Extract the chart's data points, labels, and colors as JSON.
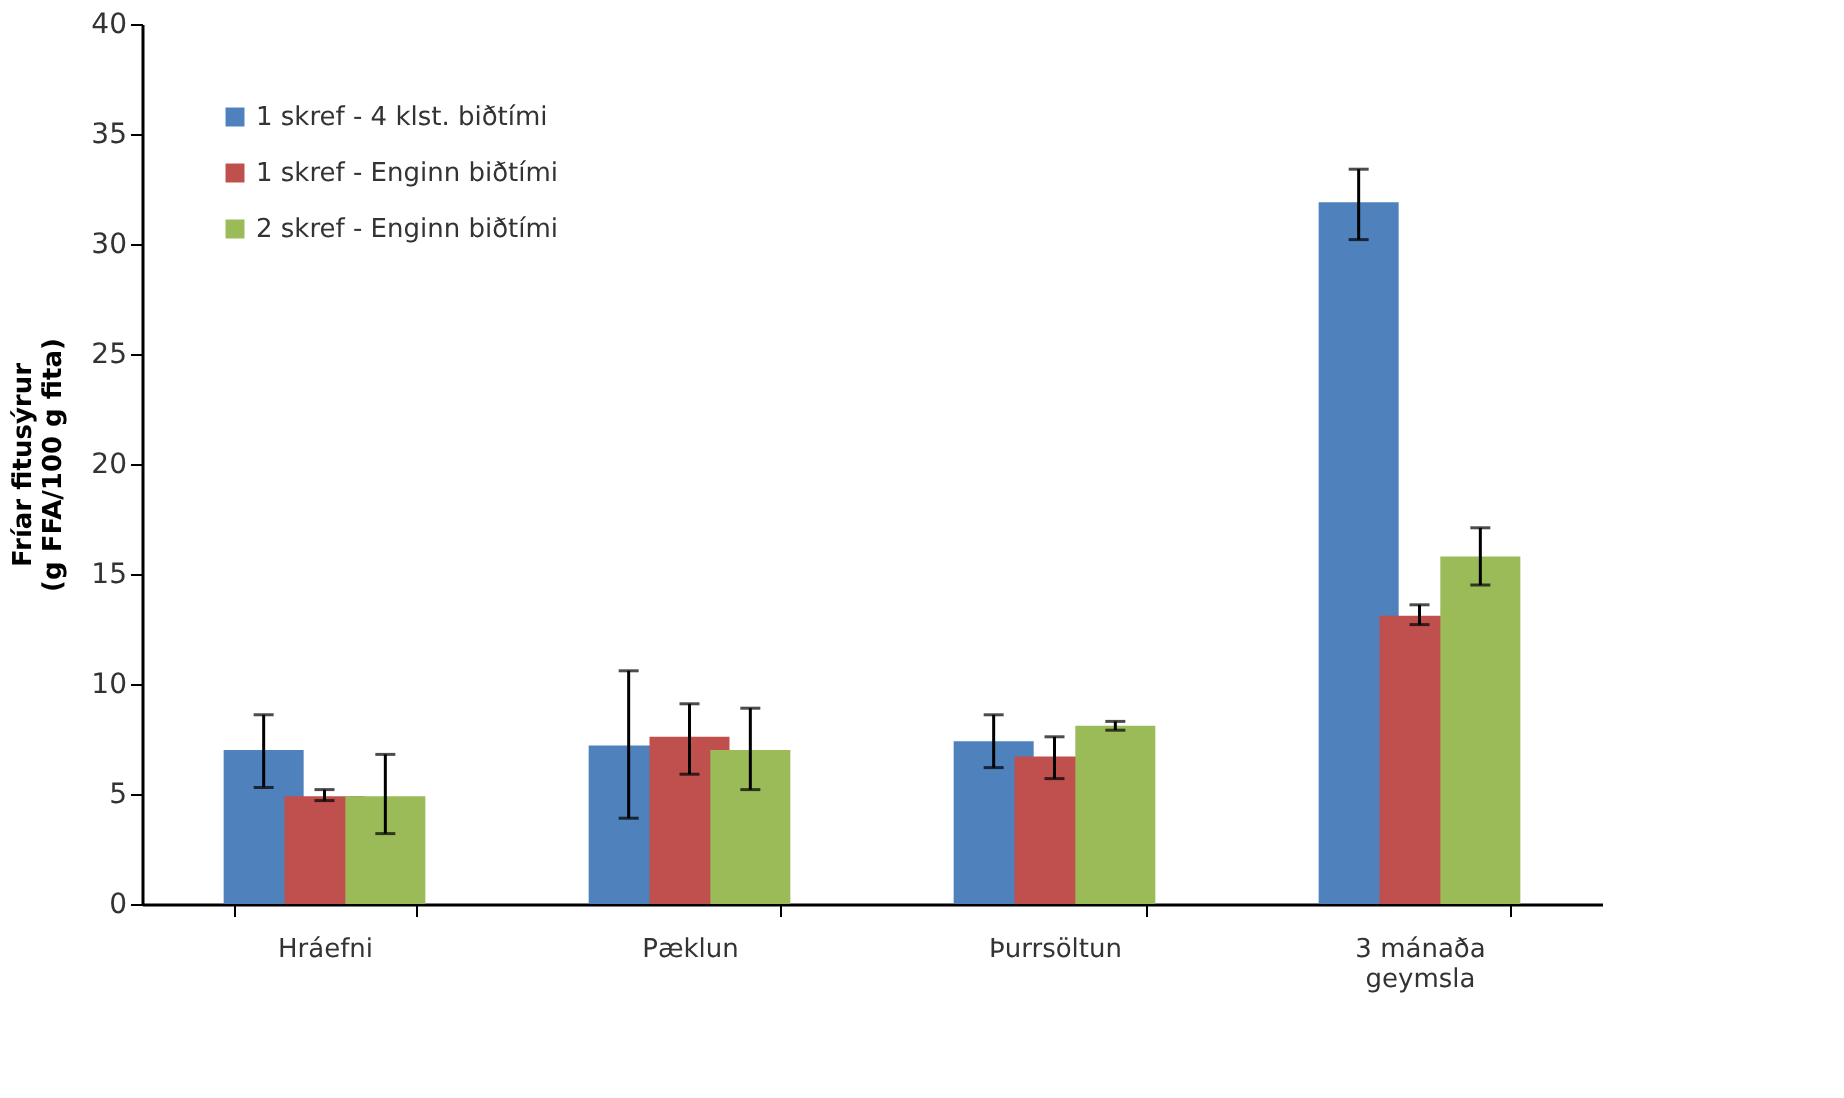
{
  "chart_data": {
    "type": "bar",
    "ylabel": "Fríar fitusýrur\n(g FFA/100 g fita)",
    "categories": [
      "Hráefni",
      "Pæklun",
      "Þurrsöltun",
      "3 mánaða geymsla"
    ],
    "series": [
      {
        "name": "1 skref - 4 klst. biðtími",
        "color": "#4f81bd",
        "values": [
          7.0,
          7.2,
          7.4,
          31.9
        ],
        "errors": [
          [
            5.3,
            8.6
          ],
          [
            3.9,
            10.6
          ],
          [
            6.2,
            8.6
          ],
          [
            30.2,
            33.4
          ]
        ]
      },
      {
        "name": "1 skref - Enginn biðtími",
        "color": "#c0504d",
        "values": [
          4.9,
          7.6,
          6.7,
          13.1
        ],
        "errors": [
          [
            4.7,
            5.2
          ],
          [
            5.9,
            9.1
          ],
          [
            5.7,
            7.6
          ],
          [
            12.7,
            13.6
          ]
        ]
      },
      {
        "name": "2 skref - Enginn biðtími",
        "color": "#9bbb59",
        "values": [
          4.9,
          7.0,
          8.1,
          15.8
        ],
        "errors": [
          [
            3.2,
            6.8
          ],
          [
            5.2,
            8.9
          ],
          [
            7.9,
            8.3
          ],
          [
            14.5,
            17.1
          ]
        ]
      }
    ],
    "ylim": [
      0,
      40
    ],
    "yticks": [
      0,
      5,
      10,
      15,
      20,
      25,
      30,
      35,
      40
    ],
    "grid": false,
    "legend": "top left"
  }
}
